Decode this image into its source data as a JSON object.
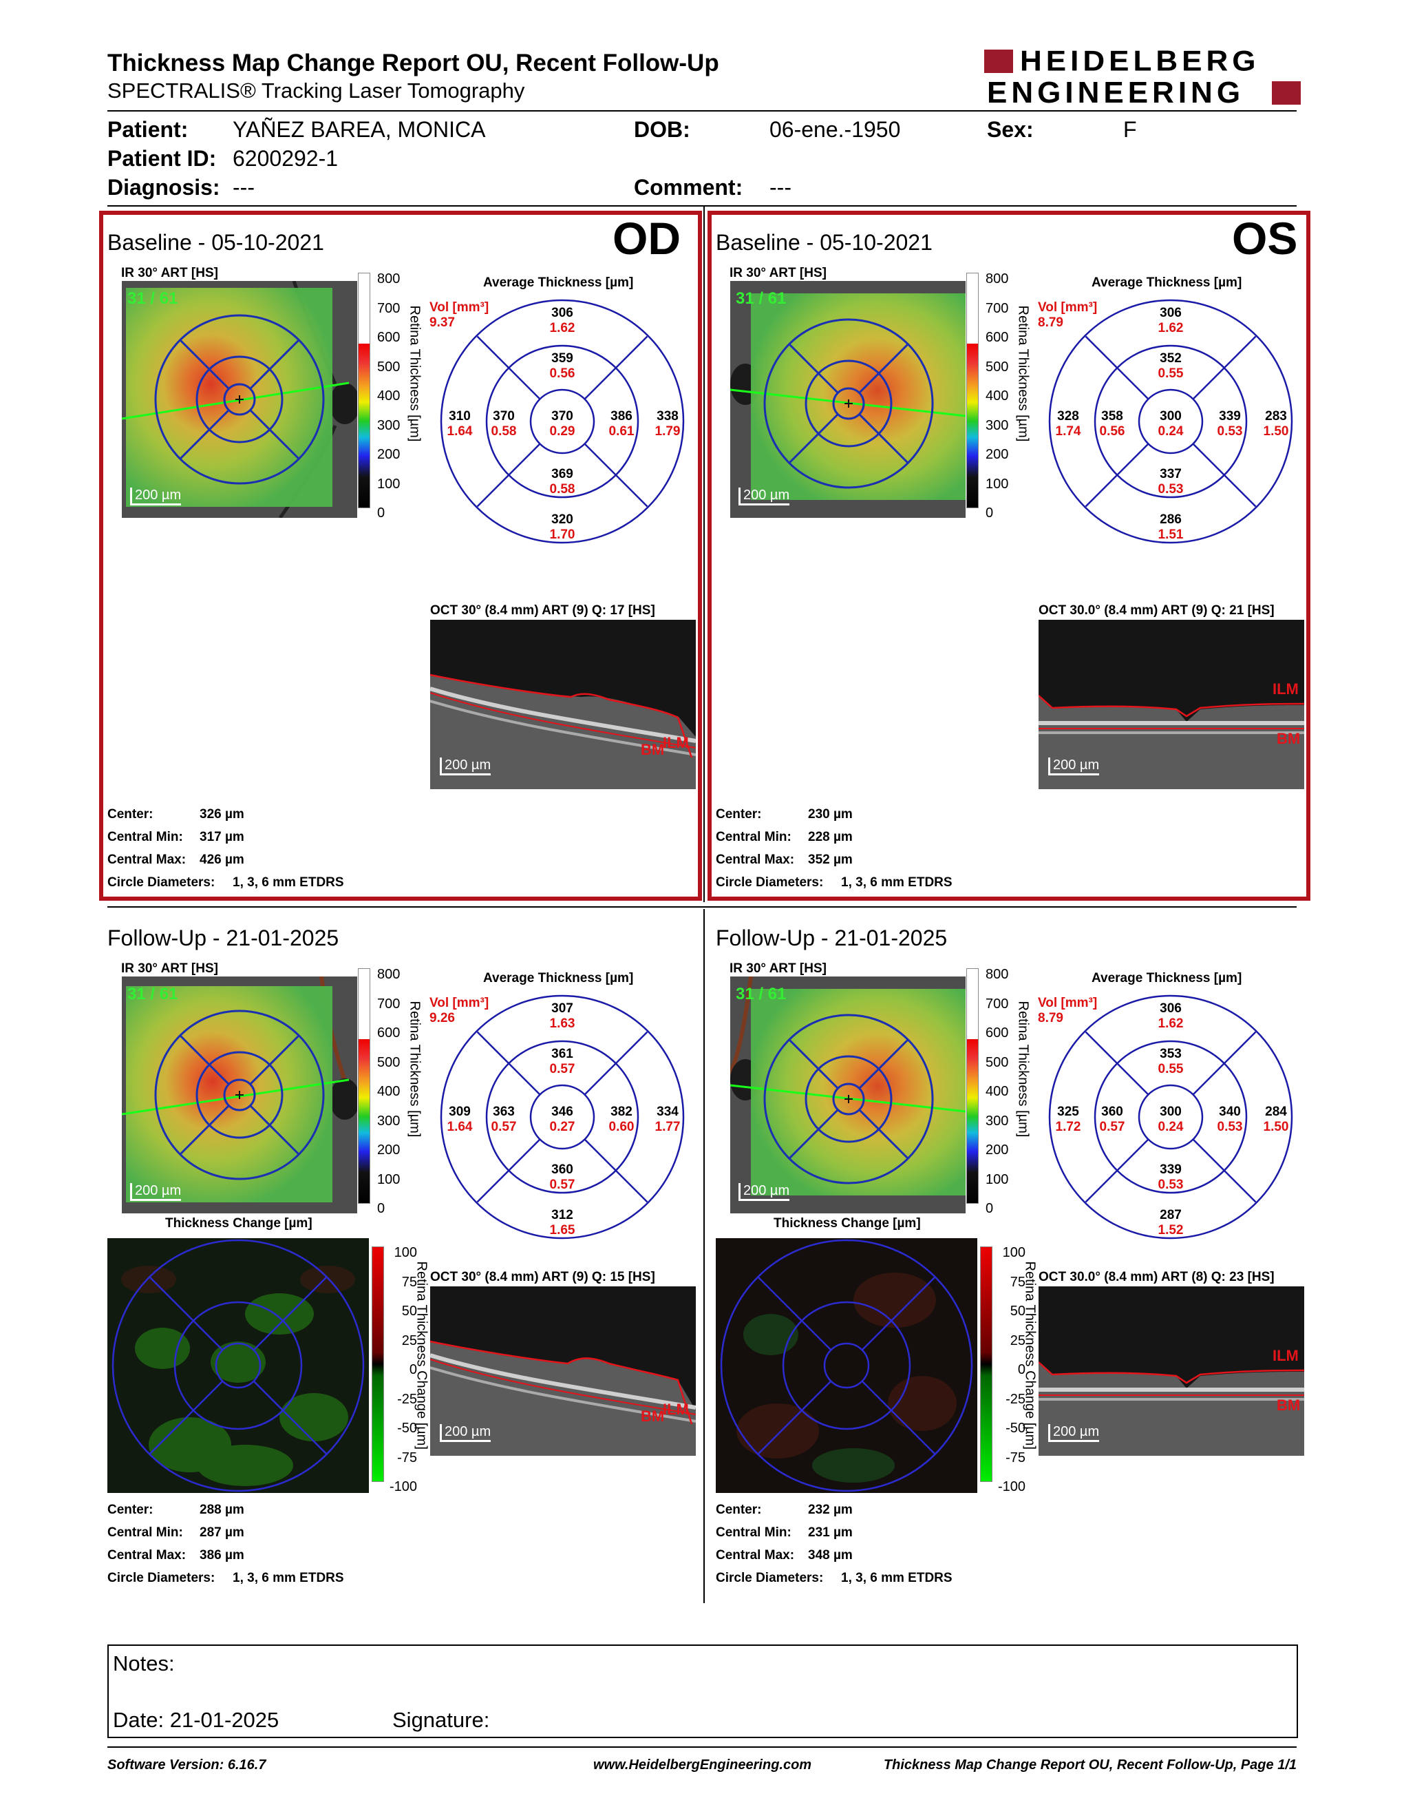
{
  "header": {
    "title": "Thickness Map Change Report OU, Recent Follow-Up",
    "subtitle": "SPECTRALIS® Tracking Laser Tomography",
    "logo_line1": "HEIDELBERG",
    "logo_line2": "ENGINEERING",
    "logo_color": "#9b1b2a"
  },
  "patient": {
    "patient_label": "Patient:",
    "patient_value": "YAÑEZ BAREA, MONICA",
    "dob_label": "DOB:",
    "dob_value": "06-ene.-1950",
    "sex_label": "Sex:",
    "sex_value": "F",
    "id_label": "Patient ID:",
    "id_value": "6200292-1",
    "diagnosis_label": "Diagnosis:",
    "diagnosis_value": "---",
    "comment_label": "Comment:",
    "comment_value": "---"
  },
  "scale": {
    "thickness_ticks": [
      "800",
      "700",
      "600",
      "500",
      "400",
      "300",
      "200",
      "100",
      "0"
    ],
    "thickness_label": "Retina Thickness [µm]",
    "change_ticks": [
      "100",
      "75",
      "50",
      "25",
      "0",
      "-25",
      "-50",
      "-75",
      "-100"
    ],
    "change_label": "Retina Thickness Change [µm]",
    "change_map_title": "Thickness Change [µm]"
  },
  "common": {
    "ir_label": "IR 30° ART [HS]",
    "avg_title": "Average Thickness [µm]",
    "vol_label": "Vol [mm³]",
    "scale_bar": "200 µm",
    "ilm": "ILM",
    "bm": "BM",
    "center_label": "Center:",
    "cmin_label": "Central Min:",
    "cmax_label": "Central Max:",
    "circ_label": "Circle Diameters:",
    "circ_value": "1, 3, 6 mm ETDRS"
  },
  "baseline_od": {
    "eye": "OD",
    "title": "Baseline - 05-10-2021",
    "frames": "31 / 61",
    "vol": "9.37",
    "etdrs": {
      "c": [
        "370",
        "0.29"
      ],
      "in": [
        "359",
        "0.56"
      ],
      "ii": [
        "369",
        "0.58"
      ],
      "it": [
        "370",
        "0.58"
      ],
      "in2": [
        "386",
        "0.61"
      ],
      "os": [
        "306",
        "1.62"
      ],
      "oi": [
        "320",
        "1.70"
      ],
      "ot": [
        "310",
        "1.64"
      ],
      "on": [
        "338",
        "1.79"
      ]
    },
    "oct_label": "OCT 30° (8.4 mm) ART (9) Q: 17 [HS]",
    "center": "326 µm",
    "cmin": "317 µm",
    "cmax": "426 µm"
  },
  "baseline_os": {
    "eye": "OS",
    "title": "Baseline - 05-10-2021",
    "frames": "31 / 61",
    "vol": "8.79",
    "etdrs": {
      "c": [
        "300",
        "0.24"
      ],
      "in": [
        "352",
        "0.55"
      ],
      "ii": [
        "337",
        "0.53"
      ],
      "it": [
        "358",
        "0.56"
      ],
      "in2": [
        "339",
        "0.53"
      ],
      "os": [
        "306",
        "1.62"
      ],
      "oi": [
        "286",
        "1.51"
      ],
      "ot": [
        "328",
        "1.74"
      ],
      "on": [
        "283",
        "1.50"
      ]
    },
    "oct_label": "OCT 30.0° (8.4 mm) ART (9) Q: 21 [HS]",
    "center": "230 µm",
    "cmin": "228 µm",
    "cmax": "352 µm"
  },
  "follow_od": {
    "title": "Follow-Up - 21-01-2025",
    "frames": "31 / 61",
    "vol": "9.26",
    "etdrs": {
      "c": [
        "346",
        "0.27"
      ],
      "in": [
        "361",
        "0.57"
      ],
      "ii": [
        "360",
        "0.57"
      ],
      "it": [
        "363",
        "0.57"
      ],
      "in2": [
        "382",
        "0.60"
      ],
      "os": [
        "307",
        "1.63"
      ],
      "oi": [
        "312",
        "1.65"
      ],
      "ot": [
        "309",
        "1.64"
      ],
      "on": [
        "334",
        "1.77"
      ]
    },
    "oct_label": "OCT 30° (8.4 mm) ART (9) Q: 15 [HS]",
    "center": "288 µm",
    "cmin": "287 µm",
    "cmax": "386 µm"
  },
  "follow_os": {
    "title": "Follow-Up - 21-01-2025",
    "frames": "31 / 61",
    "vol": "8.79",
    "etdrs": {
      "c": [
        "300",
        "0.24"
      ],
      "in": [
        "353",
        "0.55"
      ],
      "ii": [
        "339",
        "0.53"
      ],
      "it": [
        "360",
        "0.57"
      ],
      "in2": [
        "340",
        "0.53"
      ],
      "os": [
        "306",
        "1.62"
      ],
      "oi": [
        "287",
        "1.52"
      ],
      "ot": [
        "325",
        "1.72"
      ],
      "on": [
        "284",
        "1.50"
      ]
    },
    "oct_label": "OCT 30.0° (8.4 mm) ART (8) Q: 23 [HS]",
    "center": "232 µm",
    "cmin": "231 µm",
    "cmax": "348 µm"
  },
  "notes": {
    "notes_label": "Notes:",
    "date_label": "Date: 21-01-2025",
    "signature_label": "Signature:"
  },
  "footer": {
    "software": "Software Version: 6.16.7",
    "website": "www.HeidelbergEngineering.com",
    "page": "Thickness Map Change Report OU, Recent Follow-Up, Page 1/1"
  }
}
